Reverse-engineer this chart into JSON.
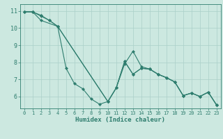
{
  "xlabel": "Humidex (Indice chaleur)",
  "bg_color": "#cce8e0",
  "grid_color": "#aacfc8",
  "line_color": "#2e7d6e",
  "xlim": [
    -0.5,
    23.5
  ],
  "ylim": [
    5.3,
    11.4
  ],
  "yticks": [
    6,
    7,
    8,
    9,
    10,
    11
  ],
  "xticks": [
    0,
    1,
    2,
    3,
    4,
    5,
    6,
    7,
    8,
    9,
    10,
    11,
    12,
    13,
    14,
    15,
    16,
    17,
    18,
    19,
    20,
    21,
    22,
    23
  ],
  "line1_x": [
    0,
    1,
    2,
    3,
    4,
    5,
    6,
    7,
    8,
    9,
    10,
    11,
    12,
    13,
    14,
    15,
    16,
    17,
    18,
    19,
    20,
    21,
    22,
    23
  ],
  "line1_y": [
    10.95,
    10.95,
    10.75,
    10.45,
    10.1,
    7.65,
    6.75,
    6.45,
    5.85,
    5.55,
    5.7,
    6.5,
    8.05,
    7.3,
    7.65,
    7.6,
    7.3,
    7.1,
    6.85,
    6.05,
    6.2,
    6.0,
    6.25,
    5.5
  ],
  "line2_x": [
    0,
    1,
    2,
    4,
    10,
    11,
    12,
    13,
    14,
    15,
    16,
    17,
    18,
    19,
    20,
    21,
    22,
    23
  ],
  "line2_y": [
    10.95,
    10.95,
    10.45,
    10.1,
    5.7,
    6.5,
    7.9,
    8.65,
    7.75,
    7.6,
    7.3,
    7.1,
    6.85,
    6.05,
    6.2,
    6.0,
    6.25,
    5.5
  ],
  "line3_x": [
    0,
    1,
    2,
    3,
    4,
    10,
    11,
    12,
    13,
    14,
    15,
    16,
    17,
    18,
    19,
    20,
    21,
    22,
    23
  ],
  "line3_y": [
    10.95,
    10.95,
    10.7,
    10.45,
    10.1,
    5.7,
    6.5,
    8.05,
    7.3,
    7.65,
    7.6,
    7.3,
    7.1,
    6.85,
    6.05,
    6.2,
    6.0,
    6.25,
    5.5
  ]
}
